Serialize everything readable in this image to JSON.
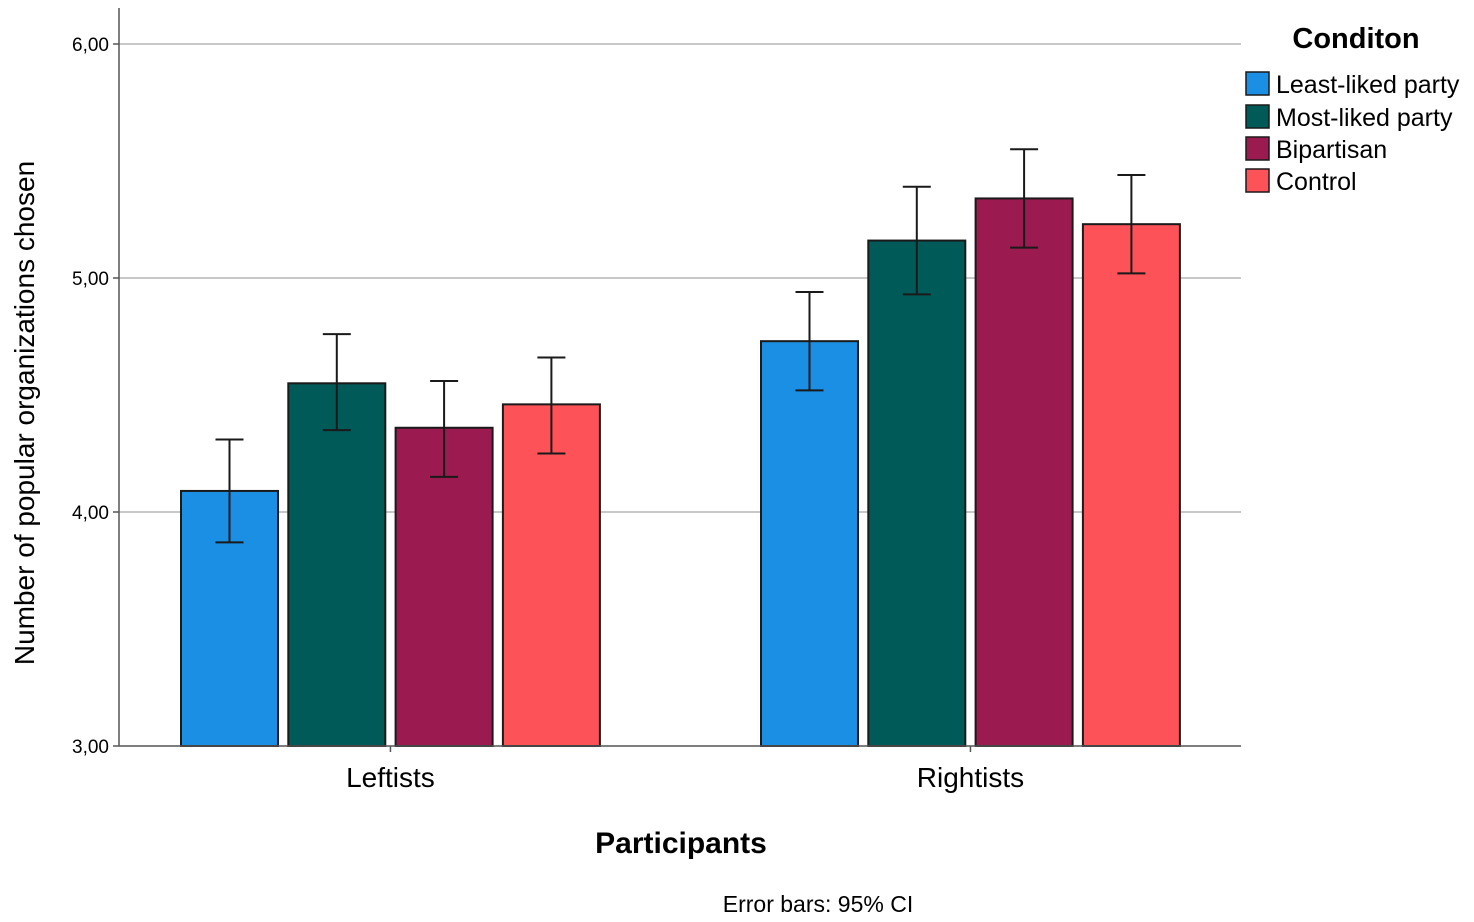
{
  "chart_data": {
    "type": "bar",
    "xlabel": "Participants",
    "ylabel": "Number of popular organizations chosen",
    "ylim": [
      3.0,
      6.0
    ],
    "yticks": [
      3.0,
      4.0,
      5.0,
      6.0
    ],
    "ytick_labels": [
      "3,00",
      "4,00",
      "5,00",
      "6,00"
    ],
    "grid": true,
    "legend_title": "Conditon",
    "legend_position": "top-right",
    "footnote": "Error bars: 95% CI",
    "categories": [
      "Leftists",
      "Rightists"
    ],
    "series": [
      {
        "name": "Least-liked party",
        "color": "#1a8fe3",
        "values": [
          4.09,
          4.73
        ],
        "ci_low": [
          3.87,
          4.52
        ],
        "ci_high": [
          4.31,
          4.94
        ]
      },
      {
        "name": "Most-liked party",
        "color": "#005b58",
        "values": [
          4.55,
          5.16
        ],
        "ci_low": [
          4.35,
          4.93
        ],
        "ci_high": [
          4.76,
          5.39
        ]
      },
      {
        "name": "Bipartisan",
        "color": "#9b1a4f",
        "values": [
          4.36,
          5.34
        ],
        "ci_low": [
          4.15,
          5.13
        ],
        "ci_high": [
          4.56,
          5.55
        ]
      },
      {
        "name": "Control",
        "color": "#fc5258",
        "values": [
          4.46,
          5.23
        ],
        "ci_low": [
          4.25,
          5.02
        ],
        "ci_high": [
          4.66,
          5.44
        ]
      }
    ]
  }
}
